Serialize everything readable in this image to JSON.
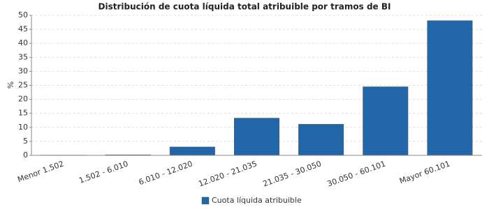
{
  "chart_data": {
    "type": "bar",
    "title": "Distribución de cuota líquida total atribuible por tramos de BI",
    "y_label": "%",
    "categories": [
      "Menor 1.502",
      "1.502 - 6.010",
      "6.010 - 12.020",
      "12.020 - 21.035",
      "21.035 - 30.050",
      "30.050 - 60.101",
      "Mayor 60.101"
    ],
    "series": [
      {
        "name": "Cuota líquida atribuible",
        "color": "#2166a8",
        "values": [
          0.1,
          0.2,
          3.0,
          13.3,
          11.1,
          24.5,
          48.1
        ]
      }
    ],
    "ylim": [
      0,
      50
    ],
    "yticks": [
      0,
      5,
      10,
      15,
      20,
      25,
      30,
      35,
      40,
      45,
      50
    ],
    "grid": true,
    "legend": "bottom"
  }
}
